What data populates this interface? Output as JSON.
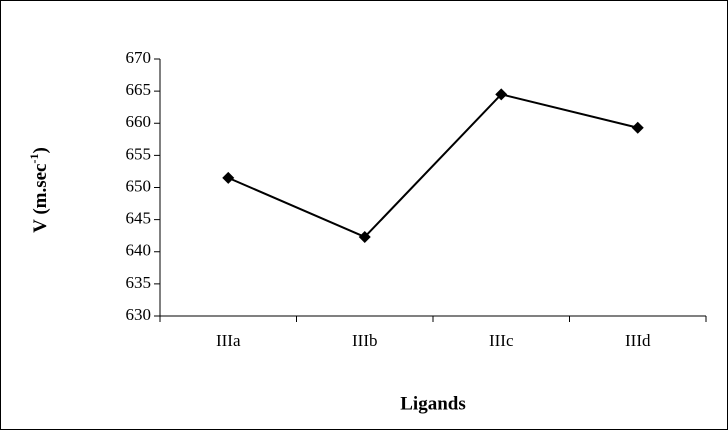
{
  "chart_data": {
    "type": "line",
    "x_label": "Ligands",
    "y_label": {
      "text": "V (m.sec",
      "superscript": "-1",
      "suffix": ")"
    },
    "categories": [
      "IIIa",
      "IIIb",
      "IIIc",
      "IIId"
    ],
    "series": [
      {
        "name": "V",
        "color": "#000000",
        "values": [
          651.5,
          642.3,
          664.5,
          659.3
        ]
      }
    ],
    "ylim": [
      630,
      670
    ],
    "yticks": [
      630,
      635,
      640,
      645,
      650,
      655,
      660,
      665,
      670
    ]
  }
}
